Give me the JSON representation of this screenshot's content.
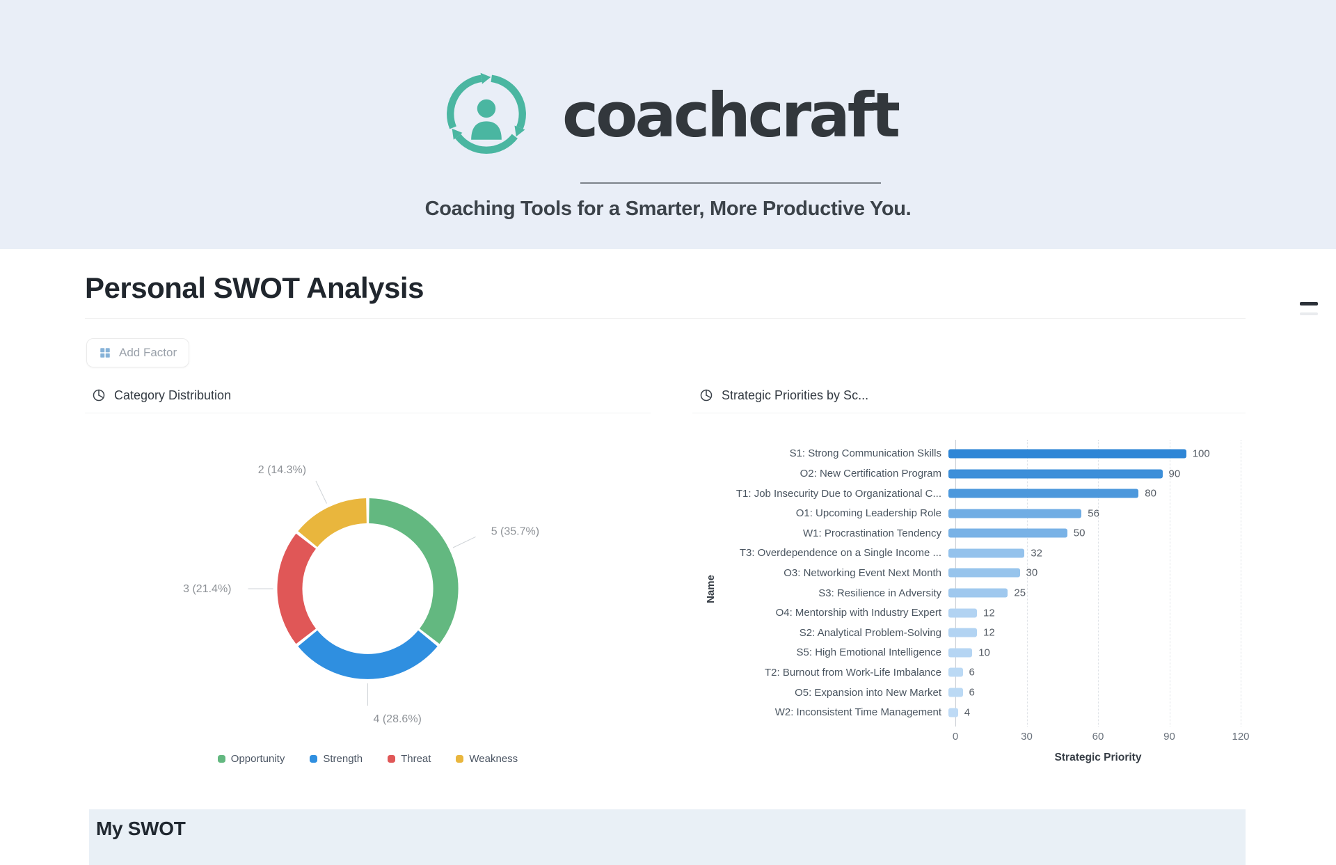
{
  "header": {
    "brand": "coachcraft",
    "tagline": "Coaching Tools for a Smarter, More Productive You.",
    "brand_color": "#4ab6a1",
    "background": "#e9eef7"
  },
  "page": {
    "title": "Personal SWOT Analysis",
    "section_heading": "My SWOT"
  },
  "toolbar": {
    "add_factor_label": "Add Factor"
  },
  "icons": {
    "logo": "circular-arrows-around-person",
    "chart_header": "pie-chart-icon",
    "add_factor_button": "grid-icon",
    "top_right": "minus-icon"
  },
  "colors": {
    "bar_high": "#2e86d6",
    "bar_low": "#c4def6",
    "band_bg": "#e9f0f6"
  },
  "chart_data": [
    {
      "type": "pie",
      "variant": "donut",
      "title": "Category Distribution",
      "legend_position": "bottom",
      "slices": [
        {
          "label": "Opportunity",
          "value": 5,
          "pct": 35.7,
          "display": "5 (35.7%)",
          "color": "#63b880"
        },
        {
          "label": "Strength",
          "value": 4,
          "pct": 28.6,
          "display": "4 (28.6%)",
          "color": "#2f8fe0"
        },
        {
          "label": "Threat",
          "value": 3,
          "pct": 21.4,
          "display": "3 (21.4%)",
          "color": "#e05757"
        },
        {
          "label": "Weakness",
          "value": 2,
          "pct": 14.3,
          "display": "2 (14.3%)",
          "color": "#e9b63d"
        }
      ]
    },
    {
      "type": "bar",
      "orientation": "horizontal",
      "title": "Strategic Priorities by Sc...",
      "xlabel": "Strategic Priority",
      "ylabel": "Name",
      "xlim": [
        0,
        120
      ],
      "xticks": [
        0,
        30,
        60,
        90,
        120
      ],
      "grid": "vertical-dotted",
      "categories": [
        "S1: Strong Communication Skills",
        "O2: New Certification Program",
        "T1: Job Insecurity Due to Organizational C...",
        "O1: Upcoming Leadership Role",
        "W1: Procrastination Tendency",
        "T3: Overdependence on a Single Income ...",
        "O3: Networking Event Next Month",
        "S3: Resilience in Adversity",
        "O4: Mentorship with Industry Expert",
        "S2: Analytical Problem-Solving",
        "S5: High Emotional Intelligence",
        "T2: Burnout from Work-Life Imbalance",
        "O5: Expansion into New Market",
        "W2: Inconsistent Time Management"
      ],
      "values": [
        100,
        90,
        80,
        56,
        50,
        32,
        30,
        25,
        12,
        12,
        10,
        6,
        6,
        4
      ]
    }
  ]
}
